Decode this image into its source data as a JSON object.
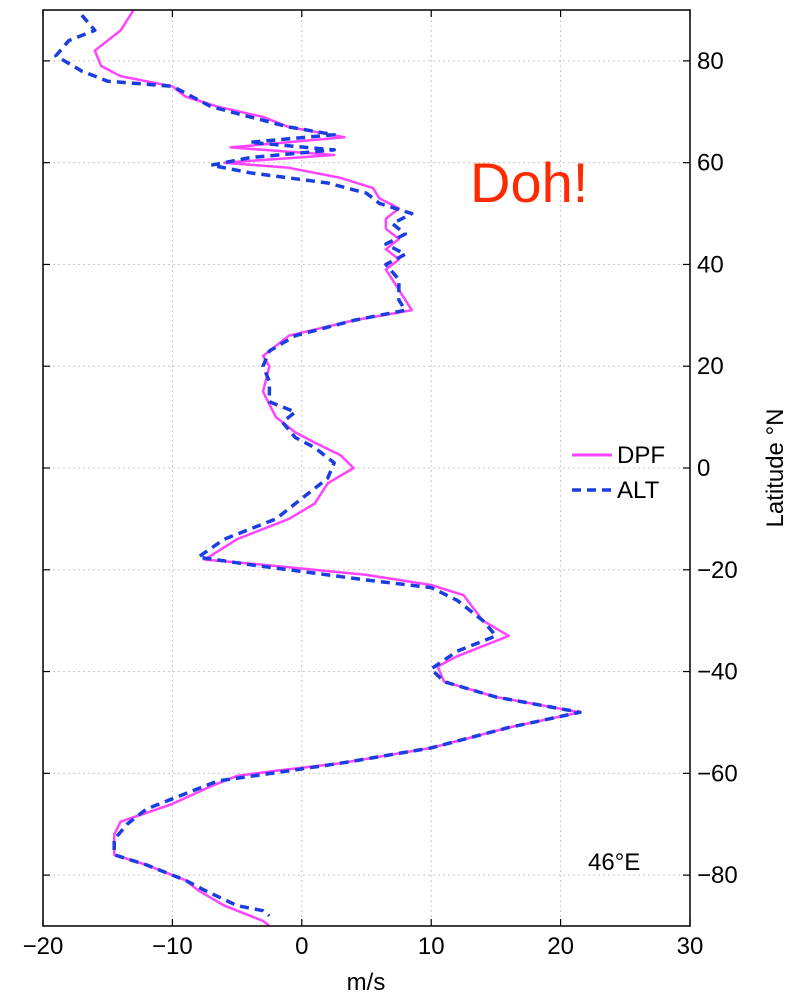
{
  "chart_data": {
    "type": "line",
    "xlabel": "m/s",
    "ylabel": "Latitude °N",
    "xlim": [
      -20,
      30
    ],
    "ylim": [
      -90,
      90
    ],
    "x_ticks": [
      "−20",
      "−10",
      "0",
      "10",
      "20",
      "30"
    ],
    "y_ticks": [
      "80",
      "60",
      "40",
      "20",
      "0",
      "−20",
      "−40",
      "−60",
      "−80"
    ],
    "grid": true,
    "legend_placement": "right-middle",
    "annotations": {
      "location": "46°E",
      "exclamation": "Doh!"
    },
    "colors": {
      "DPF": "#ff44ff",
      "ALT": "#1a3ee0",
      "exclamation": "#ff2a00"
    },
    "series": [
      {
        "name": "DPF",
        "style": "solid",
        "points": [
          [
            -13,
            90
          ],
          [
            -14,
            86
          ],
          [
            -16,
            82
          ],
          [
            -15.5,
            79
          ],
          [
            -14,
            77
          ],
          [
            -10,
            75
          ],
          [
            -9,
            73
          ],
          [
            -6.5,
            71
          ],
          [
            -3,
            69
          ],
          [
            -1,
            67
          ],
          [
            3.3,
            65
          ],
          [
            -5.5,
            63
          ],
          [
            2.5,
            61.5
          ],
          [
            -6,
            60
          ],
          [
            -1,
            59
          ],
          [
            3,
            57
          ],
          [
            5.5,
            55
          ],
          [
            6,
            53
          ],
          [
            7.5,
            51
          ],
          [
            6.5,
            49
          ],
          [
            6.5,
            47
          ],
          [
            7.5,
            45
          ],
          [
            6.5,
            43
          ],
          [
            7.5,
            41
          ],
          [
            6.5,
            39
          ],
          [
            7,
            37
          ],
          [
            7.5,
            35
          ],
          [
            8.5,
            31
          ],
          [
            4,
            29
          ],
          [
            -1,
            26
          ],
          [
            -3,
            22
          ],
          [
            -2.5,
            20
          ],
          [
            -3,
            15
          ],
          [
            -2,
            10
          ],
          [
            -0.5,
            7
          ],
          [
            1,
            5
          ],
          [
            3,
            2.5
          ],
          [
            4,
            0
          ],
          [
            2,
            -3
          ],
          [
            1,
            -7
          ],
          [
            -1,
            -10
          ],
          [
            -5,
            -14
          ],
          [
            -7.5,
            -18
          ],
          [
            -3,
            -19
          ],
          [
            5,
            -21
          ],
          [
            10,
            -23
          ],
          [
            12.5,
            -25
          ],
          [
            14,
            -30
          ],
          [
            16,
            -33
          ],
          [
            12,
            -37
          ],
          [
            10.5,
            -39
          ],
          [
            11,
            -42
          ],
          [
            15,
            -45
          ],
          [
            21.5,
            -48
          ],
          [
            16,
            -51
          ],
          [
            10,
            -55
          ],
          [
            3,
            -58
          ],
          [
            -2,
            -59.5
          ],
          [
            -5,
            -60.5
          ],
          [
            -7,
            -62.5
          ],
          [
            -10,
            -66
          ],
          [
            -14,
            -69.5
          ],
          [
            -14.5,
            -72
          ],
          [
            -14.5,
            -76
          ],
          [
            -12,
            -78
          ],
          [
            -9,
            -81
          ],
          [
            -8,
            -83
          ],
          [
            -6,
            -86
          ],
          [
            -3,
            -89
          ],
          [
            -2.5,
            -90
          ]
        ]
      },
      {
        "name": "ALT",
        "style": "dashed",
        "points": [
          [
            -17,
            89
          ],
          [
            -16,
            86
          ],
          [
            -18,
            84
          ],
          [
            -19,
            81
          ],
          [
            -17,
            78
          ],
          [
            -15,
            76
          ],
          [
            -10,
            75
          ],
          [
            -8.5,
            73
          ],
          [
            -7,
            71
          ],
          [
            -4,
            69
          ],
          [
            -1,
            67
          ],
          [
            2.5,
            65.5
          ],
          [
            -4,
            64
          ],
          [
            2.5,
            62.5
          ],
          [
            -4,
            61
          ],
          [
            -7,
            59.5
          ],
          [
            -4,
            58
          ],
          [
            2,
            56
          ],
          [
            5,
            54
          ],
          [
            6,
            52
          ],
          [
            8.5,
            50
          ],
          [
            7,
            48
          ],
          [
            8,
            46
          ],
          [
            6.5,
            44
          ],
          [
            8,
            42
          ],
          [
            6.5,
            40
          ],
          [
            7.5,
            37
          ],
          [
            7.5,
            33
          ],
          [
            8,
            31
          ],
          [
            4,
            29
          ],
          [
            -0.5,
            26
          ],
          [
            -2.5,
            23
          ],
          [
            -3,
            20
          ],
          [
            -2.5,
            17
          ],
          [
            -2.5,
            13
          ],
          [
            -0.5,
            11
          ],
          [
            -1.5,
            9
          ],
          [
            -0.5,
            6
          ],
          [
            1,
            4
          ],
          [
            2.5,
            1
          ],
          [
            2,
            -2
          ],
          [
            0,
            -6
          ],
          [
            -2,
            -10
          ],
          [
            -6,
            -14
          ],
          [
            -8,
            -17.5
          ],
          [
            -4,
            -19
          ],
          [
            5,
            -22
          ],
          [
            10,
            -23.5
          ],
          [
            12,
            -26
          ],
          [
            14,
            -30
          ],
          [
            15,
            -33
          ],
          [
            12,
            -36
          ],
          [
            10,
            -39.5
          ],
          [
            11,
            -42
          ],
          [
            15,
            -45
          ],
          [
            21.5,
            -48
          ],
          [
            16,
            -51
          ],
          [
            10,
            -55
          ],
          [
            3,
            -58
          ],
          [
            -1,
            -59.5
          ],
          [
            -6.5,
            -61.5
          ],
          [
            -9,
            -64
          ],
          [
            -12,
            -67
          ],
          [
            -13.5,
            -70
          ],
          [
            -14.5,
            -73
          ],
          [
            -14.5,
            -76
          ],
          [
            -12,
            -78
          ],
          [
            -9,
            -81
          ],
          [
            -7.5,
            -83
          ],
          [
            -5,
            -86
          ],
          [
            -3,
            -87
          ],
          [
            -2.5,
            -88
          ]
        ]
      }
    ]
  }
}
